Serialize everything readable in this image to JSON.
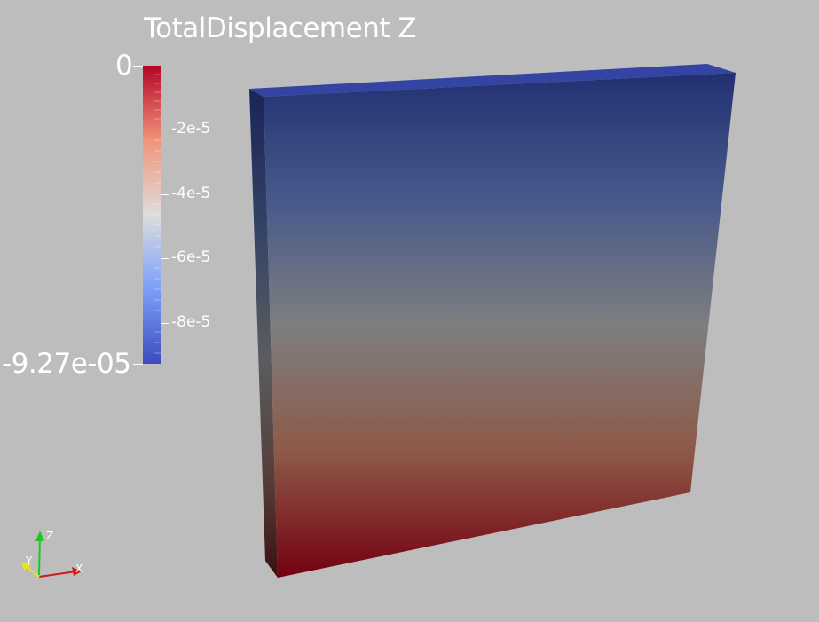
{
  "scalar_bar": {
    "title": "TotalDisplacement Z",
    "range_max": "0",
    "range_min": "-9.27e-05",
    "ticks": [
      "-2e-5",
      "-4e-5",
      "-6e-5",
      "-8e-5"
    ],
    "colormap": [
      "#b40426",
      "#f2947a",
      "#dddddd",
      "#7b9ff9",
      "#3b4cc0"
    ]
  },
  "orientation_axes": {
    "x_label": "X",
    "y_label": "Y",
    "z_label": "Z",
    "x_color": "#c81e1e",
    "y_color": "#e6e61e",
    "z_color": "#1ec81e"
  },
  "render_view": {
    "background": "#bdbdbd",
    "object": "slab-box",
    "top_color": "#223072",
    "middle_color": "#7e7e80",
    "bottom_color": "#740011"
  }
}
